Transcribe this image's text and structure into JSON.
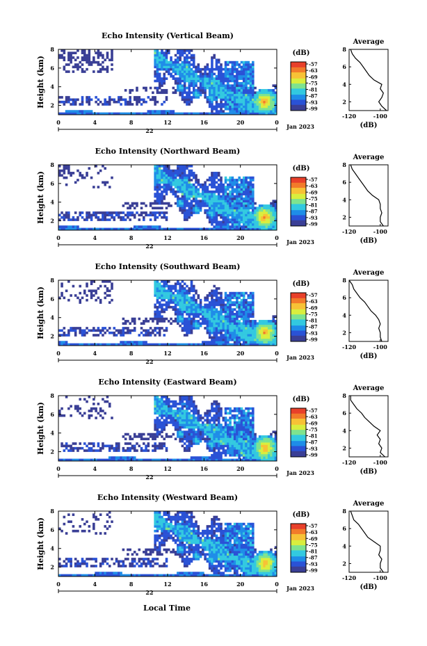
{
  "figure": {
    "x_axis_title": "Local Time",
    "date_label": "Jan 2023",
    "day_label": "22",
    "colorbar_unit": "(dB)",
    "colorbar_ticks": [
      "-57",
      "-63",
      "-69",
      "-75",
      "-81",
      "-87",
      "-93",
      "-99"
    ],
    "colorbar_colors": [
      "#3a3f96",
      "#2a52d6",
      "#1f8de8",
      "#33c9e0",
      "#7ee38f",
      "#d9ee3e",
      "#f7c236",
      "#f27b2a",
      "#e8402a"
    ],
    "average_title": "Average",
    "average_unit": "(dB)"
  },
  "chart_data": [
    {
      "type": "heatmap",
      "title": "Echo Intensity (Vertical Beam)",
      "ylabel": "Height (km)",
      "xlim": [
        0,
        24
      ],
      "ylim": [
        1,
        8
      ],
      "xticks": [
        "0",
        "4",
        "8",
        "12",
        "16",
        "20",
        "0"
      ],
      "yticks": [
        "2",
        "4",
        "6",
        "8"
      ],
      "colorbar": {
        "label": "(dB)",
        "range": [
          -99,
          -57
        ]
      },
      "average_profile": {
        "xlim": [
          -120,
          -95
        ],
        "xticks": [
          "-120",
          "-100"
        ],
        "yticks": [
          "2",
          "4",
          "6",
          "8"
        ],
        "height_km": [
          1,
          1.5,
          2,
          2.5,
          3,
          3.5,
          4,
          4.5,
          5,
          5.5,
          6,
          6.5,
          7,
          7.5,
          8
        ],
        "value_db": [
          -96,
          -99,
          -101,
          -99,
          -98,
          -100,
          -99,
          -104,
          -107,
          -109,
          -111,
          -113,
          -116,
          -118,
          -119
        ]
      }
    },
    {
      "type": "heatmap",
      "title": "Echo Intensity (Northward Beam)",
      "ylabel": "Height (km)",
      "xlim": [
        0,
        24
      ],
      "ylim": [
        1,
        8
      ],
      "xticks": [
        "0",
        "4",
        "8",
        "12",
        "16",
        "20",
        "0"
      ],
      "yticks": [
        "2",
        "4",
        "6",
        "8"
      ],
      "colorbar": {
        "label": "(dB)",
        "range": [
          -99,
          -57
        ]
      },
      "average_profile": {
        "xlim": [
          -120,
          -95
        ],
        "xticks": [
          "-120",
          "-100"
        ],
        "yticks": [
          "2",
          "4",
          "6",
          "8"
        ],
        "height_km": [
          1,
          1.5,
          2,
          2.5,
          3,
          3.5,
          4,
          4.5,
          5,
          5.5,
          6,
          6.5,
          7,
          7.5,
          8
        ],
        "value_db": [
          -98,
          -100,
          -100,
          -99,
          -100,
          -100,
          -101,
          -105,
          -108,
          -110,
          -112,
          -114,
          -116,
          -118,
          -119
        ]
      }
    },
    {
      "type": "heatmap",
      "title": "Echo Intensity (Southward Beam)",
      "ylabel": "Height (km)",
      "xlim": [
        0,
        24
      ],
      "ylim": [
        1,
        8
      ],
      "xticks": [
        "0",
        "4",
        "8",
        "12",
        "16",
        "20",
        "0"
      ],
      "yticks": [
        "2",
        "4",
        "6",
        "8"
      ],
      "colorbar": {
        "label": "(dB)",
        "range": [
          -99,
          -57
        ]
      },
      "average_profile": {
        "xlim": [
          -120,
          -95
        ],
        "xticks": [
          "-120",
          "-100"
        ],
        "yticks": [
          "2",
          "4",
          "6",
          "8"
        ],
        "height_km": [
          1,
          1.5,
          2,
          2.5,
          3,
          3.5,
          4,
          4.5,
          5,
          5.5,
          6,
          6.5,
          7,
          7.5,
          8
        ],
        "value_db": [
          -99,
          -100,
          -100,
          -101,
          -100,
          -101,
          -103,
          -106,
          -108,
          -110,
          -113,
          -115,
          -117,
          -118,
          -120
        ]
      }
    },
    {
      "type": "heatmap",
      "title": "Echo Intensity (Eastward Beam)",
      "ylabel": "Height (km)",
      "xlim": [
        0,
        24
      ],
      "ylim": [
        1,
        8
      ],
      "xticks": [
        "0",
        "4",
        "8",
        "12",
        "16",
        "20",
        "0"
      ],
      "yticks": [
        "2",
        "4",
        "6",
        "8"
      ],
      "colorbar": {
        "label": "(dB)",
        "range": [
          -99,
          -57
        ]
      },
      "average_profile": {
        "xlim": [
          -120,
          -95
        ],
        "xticks": [
          "-120",
          "-100"
        ],
        "yticks": [
          "2",
          "4",
          "6",
          "8"
        ],
        "height_km": [
          1,
          1.5,
          2,
          2.5,
          3,
          3.5,
          4,
          4.5,
          5,
          5.5,
          6,
          6.5,
          7,
          7.5,
          8
        ],
        "value_db": [
          -97,
          -100,
          -99,
          -101,
          -100,
          -102,
          -100,
          -104,
          -107,
          -110,
          -112,
          -115,
          -117,
          -119,
          -119
        ]
      }
    },
    {
      "type": "heatmap",
      "title": "Echo Intensity (Westward Beam)",
      "ylabel": "Height (km)",
      "xlim": [
        0,
        24
      ],
      "ylim": [
        1,
        8
      ],
      "xticks": [
        "0",
        "4",
        "8",
        "12",
        "16",
        "20",
        "0"
      ],
      "yticks": [
        "2",
        "4",
        "6",
        "8"
      ],
      "colorbar": {
        "label": "(dB)",
        "range": [
          -99,
          -57
        ]
      },
      "average_profile": {
        "xlim": [
          -120,
          -95
        ],
        "xticks": [
          "-120",
          "-100"
        ],
        "yticks": [
          "2",
          "4",
          "6",
          "8"
        ],
        "height_km": [
          1,
          1.5,
          2,
          2.5,
          3,
          3.5,
          4,
          4.5,
          5,
          5.5,
          6,
          6.5,
          7,
          7.5,
          8
        ],
        "value_db": [
          -98,
          -100,
          -100,
          -99,
          -101,
          -100,
          -100,
          -104,
          -108,
          -110,
          -112,
          -114,
          -117,
          -118,
          -119
        ]
      }
    }
  ]
}
